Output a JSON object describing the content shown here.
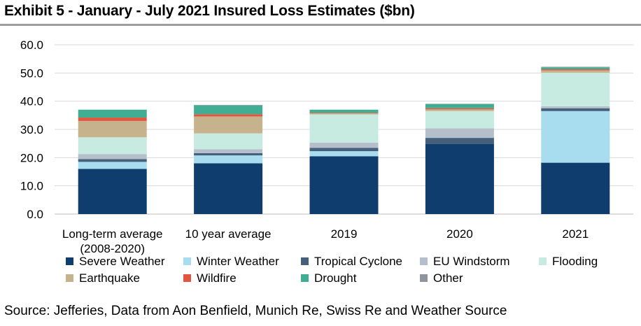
{
  "title": "Exhibit 5 - January - July 2021 Insured Loss Estimates ($bn)",
  "source": "Source: Jefferies, Data from Aon Benfield, Munich Re, Swiss Re and Weather Source",
  "chart_data": {
    "type": "bar",
    "stacked": true,
    "categories": [
      [
        "Long-term average",
        "(2008-2020)"
      ],
      [
        "10 year average"
      ],
      [
        "2019"
      ],
      [
        "2020"
      ],
      [
        "2021"
      ]
    ],
    "ylim": [
      0,
      60
    ],
    "yticks": [
      "0.0",
      "10.0",
      "20.0",
      "30.0",
      "40.0",
      "50.0",
      "60.0"
    ],
    "grid": true,
    "legend_position": "bottom",
    "series": [
      {
        "name": "Severe Weather",
        "color": "#0f3d6e",
        "values": [
          16.0,
          18.0,
          20.5,
          24.8,
          18.2
        ]
      },
      {
        "name": "Winter Weather",
        "color": "#a8dcef",
        "values": [
          2.5,
          2.8,
          1.8,
          0.0,
          18.3
        ]
      },
      {
        "name": "Tropical Cyclone",
        "color": "#44607a",
        "values": [
          1.0,
          0.8,
          1.2,
          2.2,
          1.0
        ]
      },
      {
        "name": "EU Windstorm",
        "color": "#b5bfcb",
        "values": [
          1.7,
          1.4,
          1.8,
          3.4,
          0.7
        ]
      },
      {
        "name": "Flooding",
        "color": "#c8ebe1",
        "values": [
          6.0,
          5.6,
          10.0,
          6.1,
          11.9
        ]
      },
      {
        "name": "Earthquake",
        "color": "#c6b38e",
        "values": [
          5.8,
          6.0,
          0.4,
          0.6,
          0.8
        ]
      },
      {
        "name": "Wildfire",
        "color": "#e2553f",
        "values": [
          1.2,
          0.8,
          0.2,
          0.4,
          0.4
        ]
      },
      {
        "name": "Drought",
        "color": "#3fae92",
        "values": [
          2.8,
          3.1,
          1.1,
          1.5,
          0.7
        ]
      },
      {
        "name": "Other",
        "color": "#8e959e",
        "values": [
          0.0,
          0.2,
          0.0,
          0.1,
          0.2
        ]
      }
    ]
  }
}
